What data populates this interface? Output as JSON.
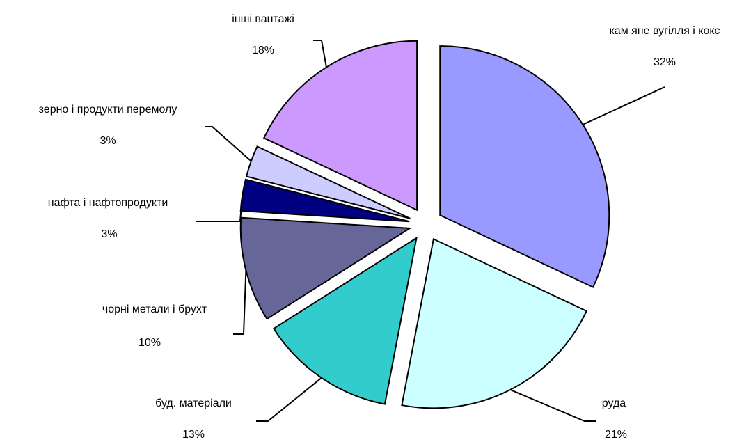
{
  "chart_data": {
    "type": "pie",
    "categories": [
      "кам яне вугілля і кокс",
      "руда",
      "буд. матеріали",
      "чорні метали і брухт",
      "нафта і нафтопродукти",
      "зерно і продукти перемолу",
      "інші вантажі"
    ],
    "values": [
      32,
      21,
      13,
      10,
      3,
      3,
      18
    ],
    "value_labels": [
      "32%",
      "21%",
      "13%",
      "10%",
      "3%",
      "3%",
      "18%"
    ],
    "colors": [
      "#9999ff",
      "#ccffff",
      "#33cccc",
      "#666699",
      "#000080",
      "#ccccff",
      "#cc99ff"
    ]
  }
}
